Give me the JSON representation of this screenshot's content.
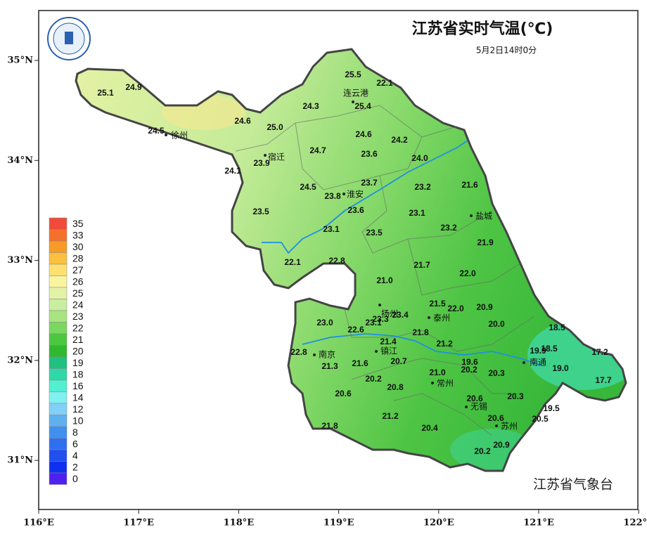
{
  "title": "江苏省实时气温(℃)",
  "subtitle": "5月2日14时0分",
  "credit": "江苏省气象台",
  "lon_ticks": [
    "116°E",
    "117°E",
    "118°E",
    "119°E",
    "120°E",
    "121°E",
    "122°E"
  ],
  "lat_ticks": [
    "35°N",
    "34°N",
    "33°N",
    "32°N",
    "31°N"
  ],
  "legend": {
    "levels": [
      "35",
      "33",
      "30",
      "28",
      "27",
      "26",
      "25",
      "24",
      "23",
      "22",
      "21",
      "20",
      "19",
      "18",
      "16",
      "14",
      "12",
      "10",
      "8",
      "6",
      "4",
      "2",
      "0"
    ],
    "colors": [
      "#f04a3a",
      "#f5702a",
      "#f89a28",
      "#fbc040",
      "#fde070",
      "#f8f4a0",
      "#e4f2a8",
      "#c8eea0",
      "#a8e480",
      "#7ad860",
      "#4cc840",
      "#30b830",
      "#20c080",
      "#30d8a8",
      "#50f0d0",
      "#80f0f0",
      "#80d0f8",
      "#60b0f0",
      "#4090f0",
      "#3070f0",
      "#2050f0",
      "#1030f0",
      "#5020f0"
    ]
  },
  "stations": [
    "25.5",
    "22.1",
    "25.1",
    "24.9",
    "25.4",
    "24.3",
    "24.6",
    "25.0",
    "24.5",
    "24.6",
    "24.2",
    "24.7",
    "23.6",
    "24.0",
    "23.9",
    "24.1",
    "21.6",
    "23.7",
    "24.5",
    "23.2",
    "23.8",
    "23.6",
    "23.5",
    "23.1",
    "23.1",
    "23.2",
    "23.5",
    "21.9",
    "22.1",
    "22.8",
    "21.7",
    "22.0",
    "21.0",
    "21.5",
    "22.0",
    "20.9",
    "23.3",
    "23.4",
    "23.1",
    "23.0",
    "20.0",
    "18.5",
    "22.6",
    "21.8",
    "21.4",
    "21.2",
    "19.9",
    "18.5",
    "17.2",
    "22.8",
    "20.7",
    "21.6",
    "19.6",
    "21.3",
    "20.2",
    "19.0",
    "20.3",
    "21.0",
    "17.7",
    "20.2",
    "20.8",
    "20.6",
    "20.6",
    "20.3",
    "19.5",
    "21.2",
    "20.6",
    "20.5",
    "21.8",
    "20.4",
    "20.9",
    "20.2"
  ],
  "cities": [
    "连云港",
    "徐州",
    "宿迁",
    "淮安",
    "盐城",
    "扬州",
    "泰州",
    "镇江",
    "南京",
    "南通",
    "常州",
    "无锡",
    "苏州"
  ]
}
